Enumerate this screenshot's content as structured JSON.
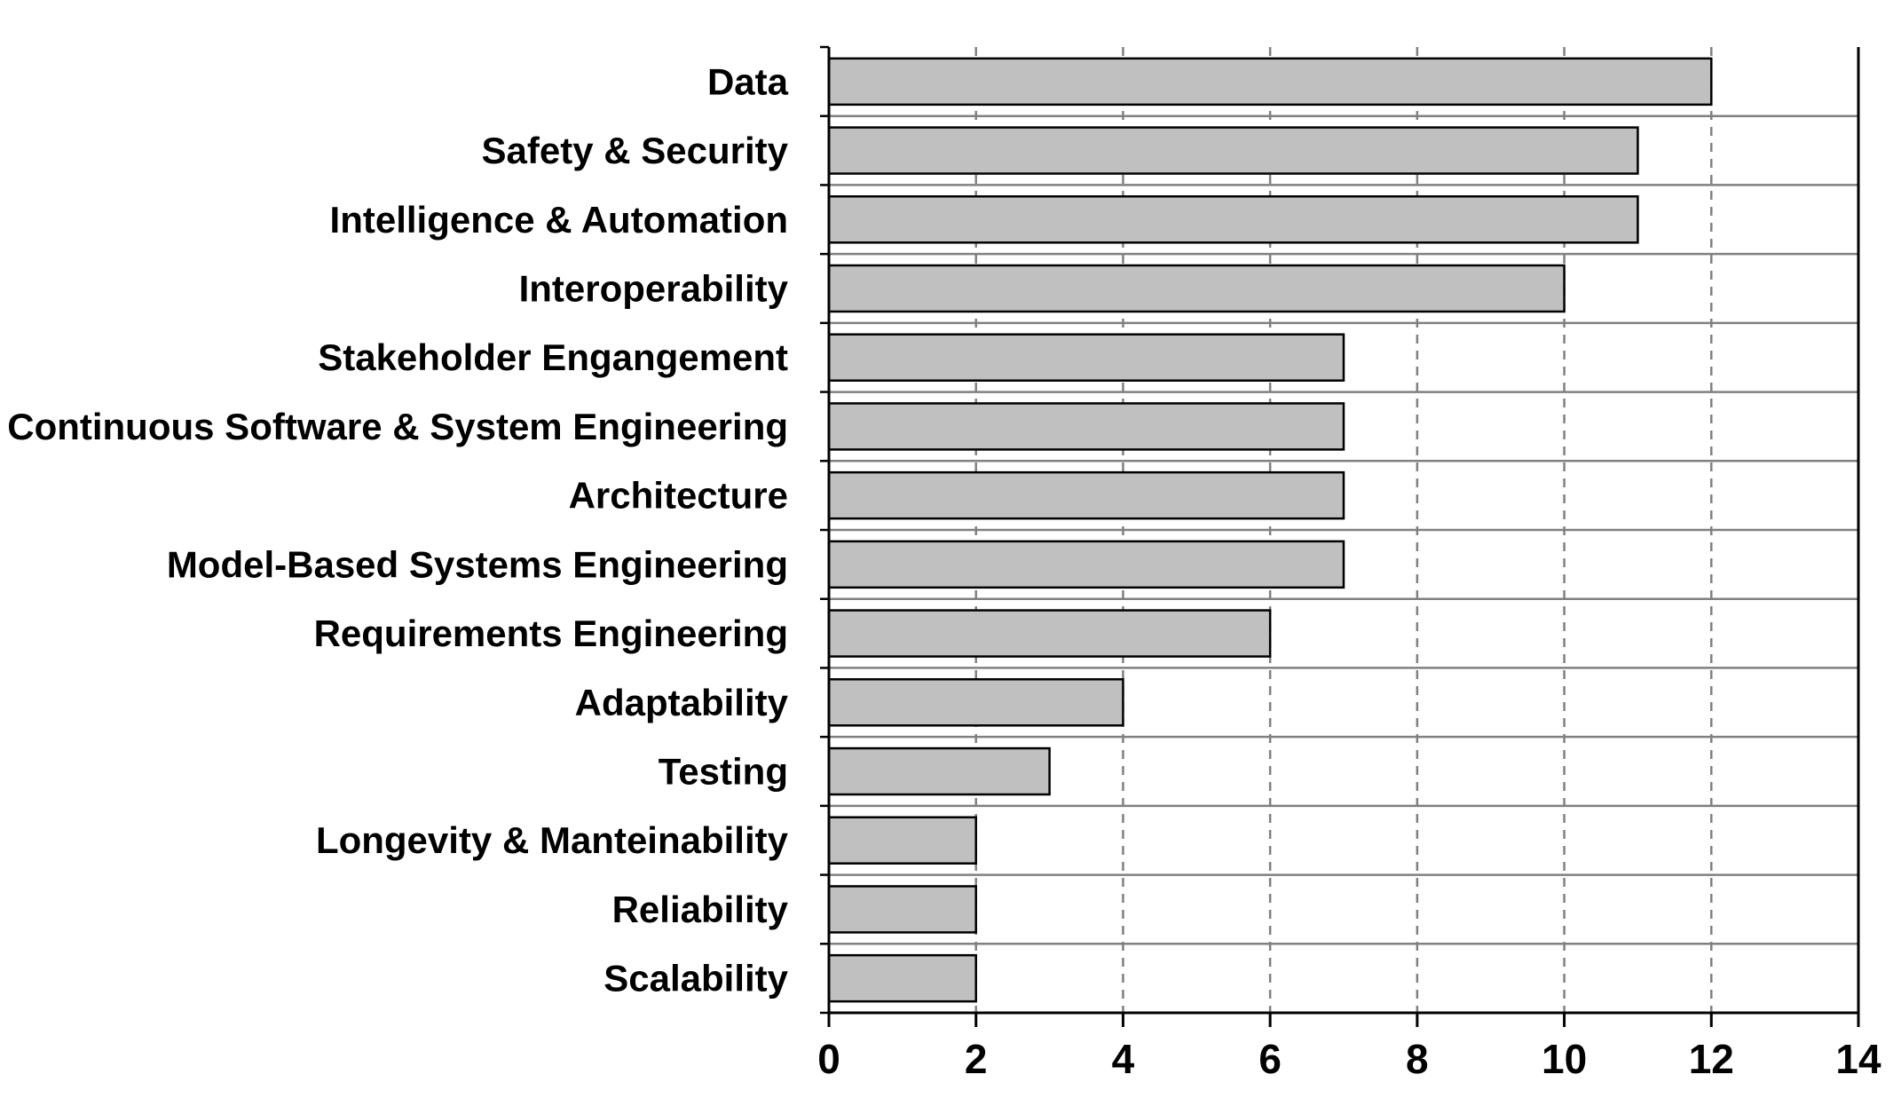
{
  "chart_data": {
    "type": "bar",
    "orientation": "horizontal",
    "title": "",
    "xlabel": "",
    "ylabel": "",
    "categories": [
      "Data",
      "Safety & Security",
      "Intelligence & Automation",
      "Interoperability",
      "Stakeholder Engangement",
      "Continuous Software & System Engineering",
      "Architecture",
      "Model-Based Systems Engineering",
      "Requirements Engineering",
      "Adaptability",
      "Testing",
      "Longevity & Manteinability",
      "Reliability",
      "Scalability"
    ],
    "values": [
      12,
      11,
      11,
      10,
      7,
      7,
      7,
      7,
      6,
      4,
      3,
      2,
      2,
      2
    ],
    "xlim": [
      0,
      14
    ],
    "xticks": [
      0,
      2,
      4,
      6,
      8,
      10,
      12,
      14
    ],
    "x_grid": "dashed",
    "legend": "none",
    "colors": {
      "bar_fill": "#c0c0c0",
      "bar_stroke": "#000000",
      "grid": "#808080",
      "axis": "#000000"
    }
  }
}
